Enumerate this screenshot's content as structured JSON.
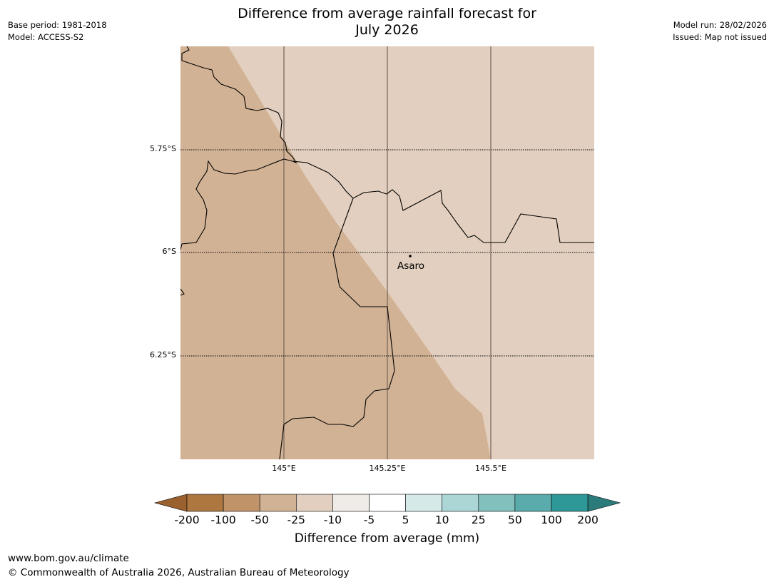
{
  "title_line1": "Difference from average rainfall forecast for",
  "title_line2": "July 2026",
  "base_period": "Base period: 1981-2018",
  "model": "Model: ACCESS-S2",
  "model_run": "Model run: 28/02/2026",
  "issued": "Issued: Map not issued",
  "map": {
    "lat_labels": [
      "5.75°S",
      "6°S",
      "6.25°S"
    ],
    "lon_labels": [
      "145°E",
      "145.25°E",
      "145.5°E"
    ],
    "place": "Asaro",
    "colors": {
      "region_minus50_to_25": "#d2b294",
      "region_minus25_to_10": "#e2cfbf"
    }
  },
  "legend": {
    "ticks": [
      "-200",
      "-100",
      "-50",
      "-25",
      "-10",
      "-5",
      "5",
      "10",
      "25",
      "50",
      "100",
      "200"
    ],
    "colors": [
      "#9a602e",
      "#ad773f",
      "#c09369",
      "#d2b294",
      "#e2cfbf",
      "#efebe7",
      "#ffffff",
      "#d4e9e8",
      "#acd5d5",
      "#82c0be",
      "#5aabab",
      "#2e9898",
      "#2b7b7a"
    ],
    "label": "Difference from average (mm)"
  },
  "footer": {
    "url": "www.bom.gov.au/climate",
    "copyright": "© Commonwealth of Australia 2026, Australian Bureau of Meteorology"
  }
}
